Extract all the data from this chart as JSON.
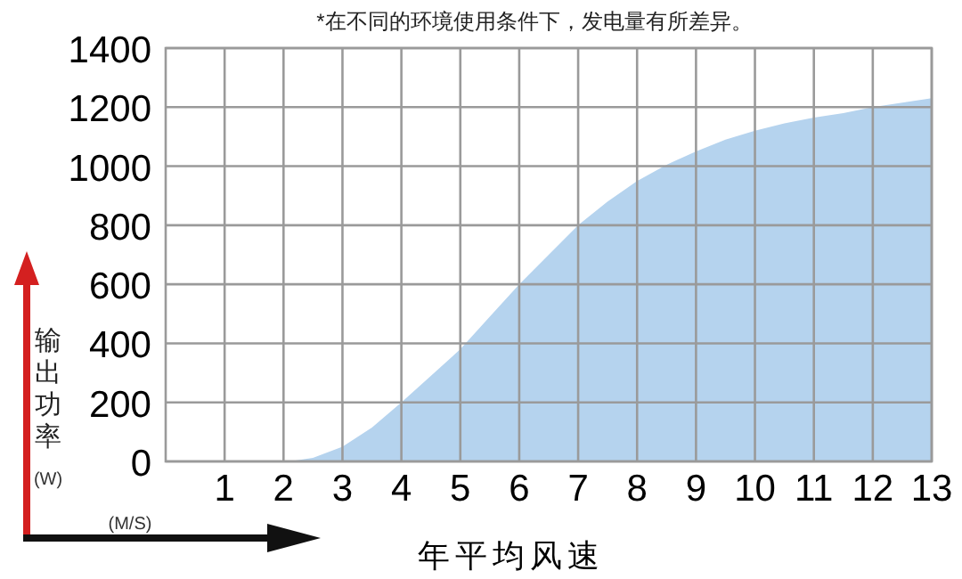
{
  "chart_data": {
    "type": "area",
    "title": "*在不同的环境使用条件下，发电量有所差异。",
    "xlabel": "年平均风速",
    "ylabel": "输出功率",
    "annotations": [
      "(M/S)",
      "(W)"
    ],
    "series": [
      {
        "color": "#b5d3ee",
        "x": [
          2.1,
          2.5,
          3,
          3.5,
          4,
          4.5,
          5,
          5.5,
          6,
          6.5,
          7,
          7.5,
          8,
          8.5,
          9,
          9.5,
          10,
          10.5,
          11,
          11.5,
          12,
          12.5,
          13
        ],
        "values": [
          0,
          12,
          50,
          115,
          200,
          290,
          380,
          490,
          600,
          700,
          800,
          880,
          950,
          1005,
          1050,
          1090,
          1120,
          1145,
          1165,
          1180,
          1200,
          1215,
          1230
        ]
      }
    ],
    "xlim": [
      0,
      13
    ],
    "xticks": [
      1,
      2,
      3,
      4,
      5,
      6,
      7,
      8,
      9,
      10,
      11,
      12,
      13
    ],
    "ylim": [
      0,
      1400
    ],
    "yticks": [
      0,
      200,
      400,
      600,
      800,
      1000,
      1200,
      1400
    ],
    "grid": true
  }
}
